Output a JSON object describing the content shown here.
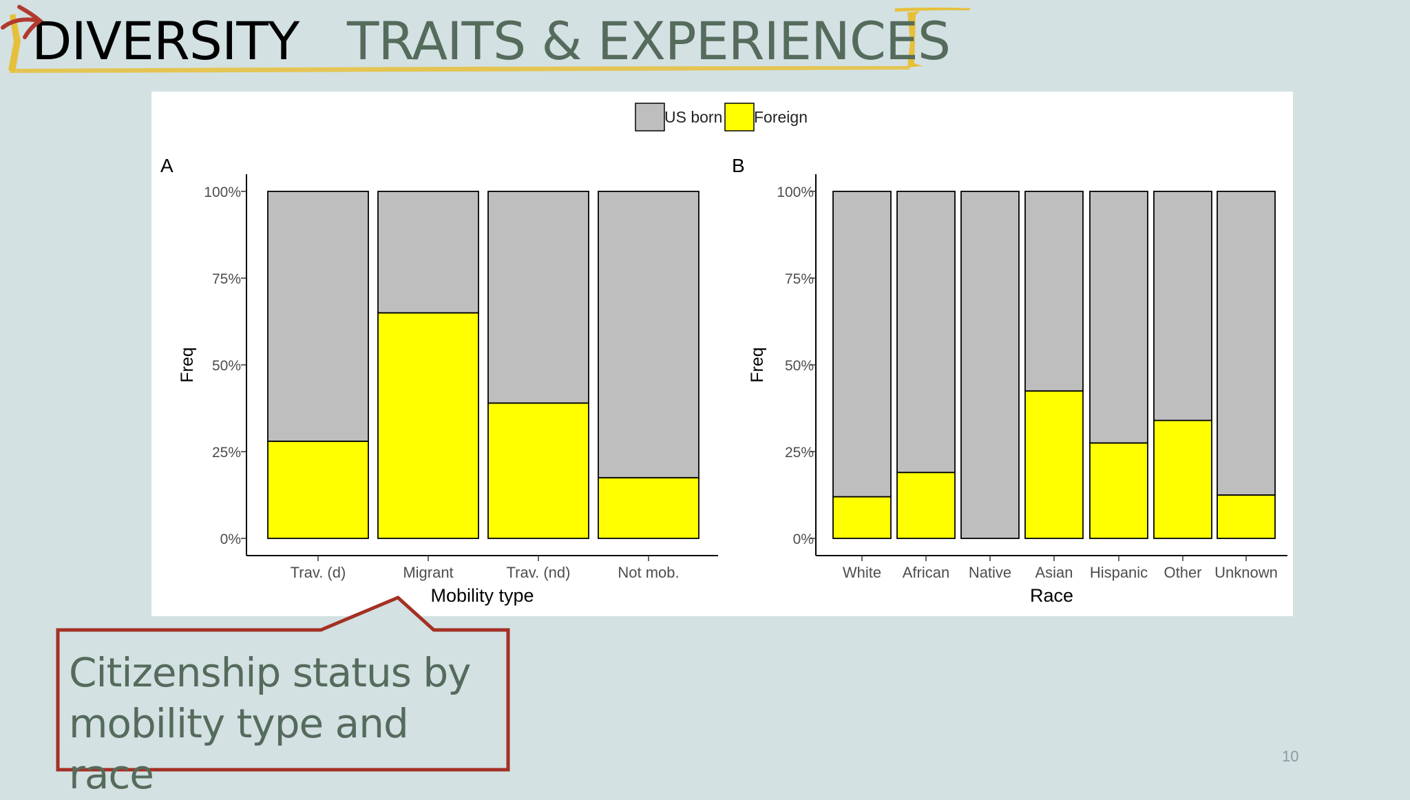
{
  "slide": {
    "title_main": "DIVERSITY",
    "title_sub": "TRAITS & EXPERIENCES",
    "callout": "Citizenship status by mobility type and race",
    "page_number": "10",
    "accent_color": "#e6c03a",
    "callout_border_color": "#a33124",
    "title_sub_color": "#556b5c",
    "arrow_color": "#b03a2e"
  },
  "legend": {
    "items": [
      {
        "label": "US born",
        "color": "#bebebe"
      },
      {
        "label": "Foreign",
        "color": "#ffff00"
      }
    ]
  },
  "chart_data": [
    {
      "type": "bar",
      "stacked": true,
      "panel_label": "A",
      "xlabel": "Mobility type",
      "ylabel": "Freq",
      "ylim": [
        0,
        1
      ],
      "yticks": [
        "0%",
        "25%",
        "50%",
        "75%",
        "100%"
      ],
      "categories": [
        "Trav. (d)",
        "Migrant",
        "Trav. (nd)",
        "Not mob."
      ],
      "series": [
        {
          "name": "Foreign",
          "color": "#ffff00",
          "values": [
            0.28,
            0.65,
            0.39,
            0.175
          ]
        },
        {
          "name": "US born",
          "color": "#bebebe",
          "values": [
            0.72,
            0.35,
            0.61,
            0.825
          ]
        }
      ]
    },
    {
      "type": "bar",
      "stacked": true,
      "panel_label": "B",
      "xlabel": "Race",
      "ylabel": "Freq",
      "ylim": [
        0,
        1
      ],
      "yticks": [
        "0%",
        "25%",
        "50%",
        "75%",
        "100%"
      ],
      "categories": [
        "White",
        "African",
        "Native",
        "Asian",
        "Hispanic",
        "Other",
        "Unknown"
      ],
      "series": [
        {
          "name": "Foreign",
          "color": "#ffff00",
          "values": [
            0.12,
            0.19,
            0.0,
            0.425,
            0.275,
            0.34,
            0.125
          ]
        },
        {
          "name": "US born",
          "color": "#bebebe",
          "values": [
            0.88,
            0.81,
            1.0,
            0.575,
            0.725,
            0.66,
            0.875
          ]
        }
      ]
    }
  ]
}
